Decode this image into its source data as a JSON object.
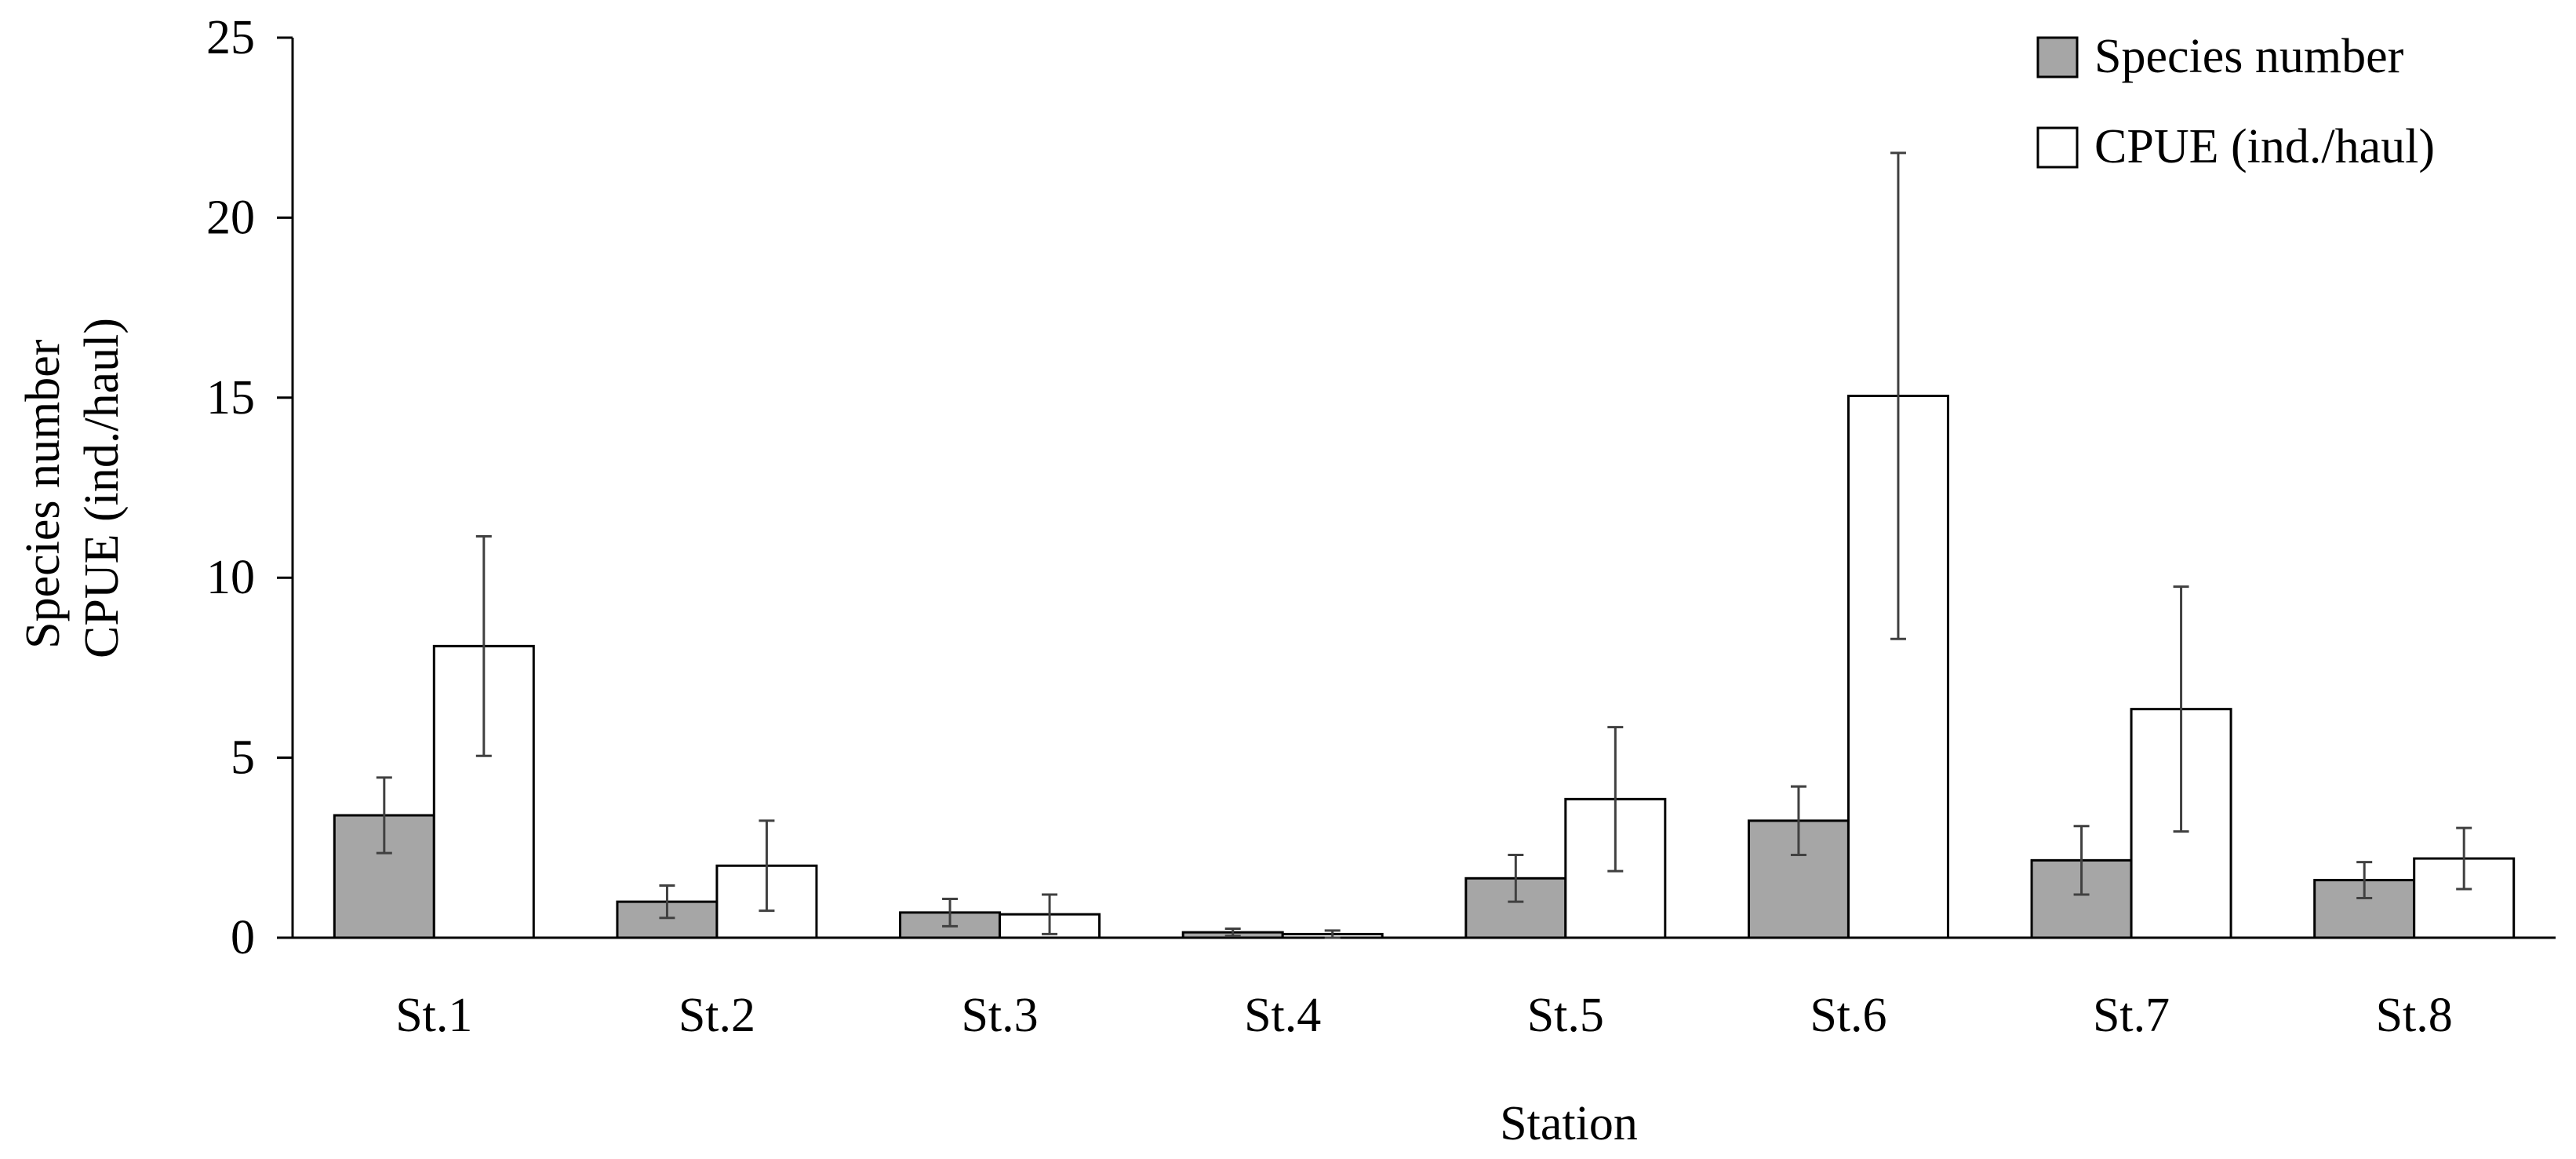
{
  "chart_data": {
    "type": "bar",
    "title": "",
    "xlabel": "Station",
    "ylabel": [
      "Species number",
      "CPUE (ind./haul)"
    ],
    "categories": [
      "St.1",
      "St.2",
      "St.3",
      "St.4",
      "St.5",
      "St.6",
      "St.7",
      "St.8"
    ],
    "ylim": [
      0,
      25
    ],
    "yticks": [
      0,
      5,
      10,
      15,
      20,
      25
    ],
    "grid": false,
    "legend_position": "top-right",
    "series": [
      {
        "name": "Species number",
        "color": "#a6a6a6",
        "values": [
          3.4,
          1.0,
          0.7,
          0.15,
          1.65,
          3.25,
          2.15,
          1.6
        ],
        "errors": [
          1.05,
          0.45,
          0.38,
          0.1,
          0.65,
          0.95,
          0.95,
          0.5
        ]
      },
      {
        "name": "CPUE (ind./haul)",
        "color": "#ffffff",
        "values": [
          8.1,
          2.0,
          0.65,
          0.1,
          3.85,
          15.05,
          6.35,
          2.2
        ],
        "errors": [
          3.05,
          1.25,
          0.55,
          0.1,
          2.0,
          6.75,
          3.4,
          0.85
        ]
      }
    ]
  }
}
